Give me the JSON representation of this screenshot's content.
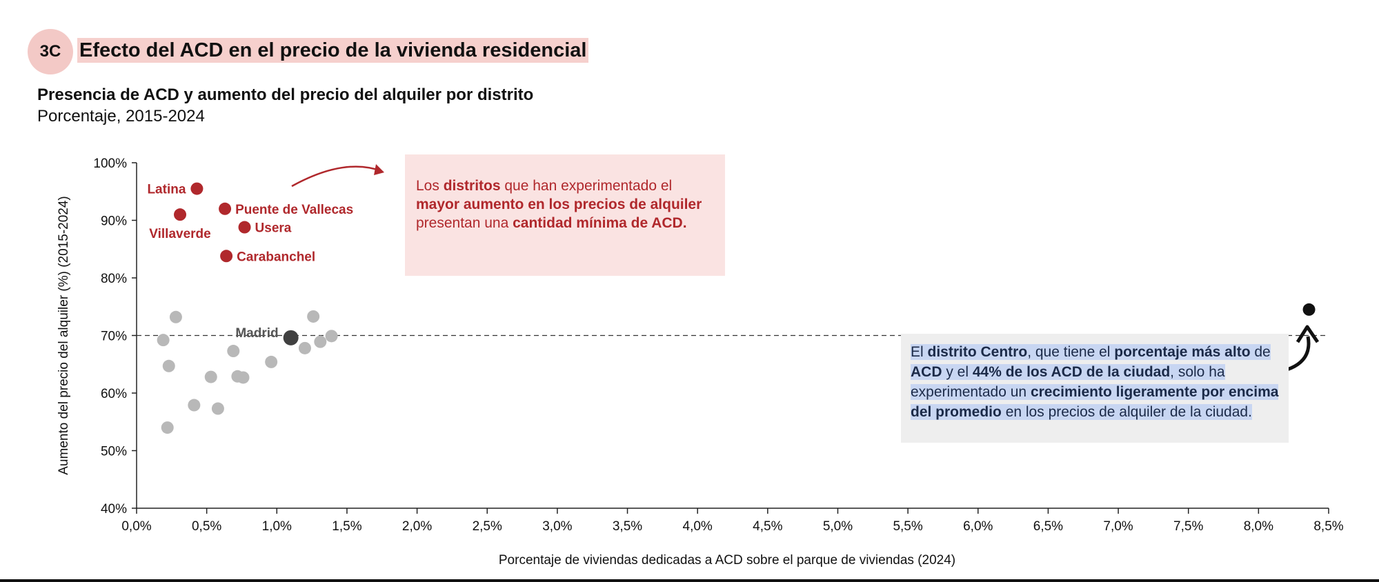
{
  "header": {
    "badge": "3C",
    "title": "Efecto del ACD en el precio de la vivienda residencial",
    "subtitle": "Presencia de ACD y aumento del precio del alquiler por distrito",
    "subtitle2": "Porcentaje, 2015-2024"
  },
  "annotations": {
    "red_box": [
      {
        "t": "Los ",
        "b": false
      },
      {
        "t": "distritos",
        "b": true
      },
      {
        "t": " que han experimentado el ",
        "b": false
      },
      {
        "t": "mayor aumento en los precios de alquiler",
        "b": true
      },
      {
        "t": " presentan una ",
        "b": false
      },
      {
        "t": "cantidad mínima de ACD.",
        "b": true
      }
    ],
    "gray_box": [
      {
        "t": "El ",
        "b": false
      },
      {
        "t": "distrito Centro",
        "b": true
      },
      {
        "t": ", que tiene el ",
        "b": false
      },
      {
        "t": "porcentaje más alto",
        "b": true
      },
      {
        "t": " de ",
        "b": false
      },
      {
        "t": "ACD",
        "b": true
      },
      {
        "t": " y el ",
        "b": false
      },
      {
        "t": "44% de los ACD de la ciudad",
        "b": true
      },
      {
        "t": ", solo ha experimentado un ",
        "b": false
      },
      {
        "t": "crecimiento ligeramente por encima del promedio",
        "b": true
      },
      {
        "t": " en los precios de alquiler de la ciudad.",
        "b": false
      }
    ]
  },
  "colors": {
    "highlight": "#b0282c",
    "other": "#b8b8b8",
    "average": "#404040",
    "centro": "#111111",
    "red_box": "#fae3e2",
    "gray_box": "#eeeeee"
  },
  "chart_data": {
    "type": "scatter",
    "xlabel": "Porcentaje de viviendas dedicadas a ACD sobre el parque de viviendas (2024)",
    "ylabel": "Aumento del precio del alquiler (%) (2015-2024)",
    "xlim": [
      0,
      8.5
    ],
    "ylim": [
      40,
      100
    ],
    "x_ticks": [
      0,
      0.5,
      1.0,
      1.5,
      2.0,
      2.5,
      3.0,
      3.5,
      4.0,
      4.5,
      5.0,
      5.5,
      6.0,
      6.5,
      7.0,
      7.5,
      8.0,
      8.5
    ],
    "x_tick_labels": [
      "0,0%",
      "0,5%",
      "1,0%",
      "1,5%",
      "2,0%",
      "2,5%",
      "3,0%",
      "3,5%",
      "4,0%",
      "4,5%",
      "5,0%",
      "5,5%",
      "6,0%",
      "6,5%",
      "7,0%",
      "7,5%",
      "8,0%",
      "8,5%"
    ],
    "y_ticks": [
      40,
      50,
      60,
      70,
      80,
      90,
      100
    ],
    "y_tick_labels": [
      "40%",
      "50%",
      "60%",
      "70%",
      "80%",
      "90%",
      "100%"
    ],
    "reference_line": {
      "y": 70,
      "style": "dashed"
    },
    "highlighted": [
      {
        "name": "Latina",
        "x": 0.43,
        "y": 95.5
      },
      {
        "name": "Villaverde",
        "x": 0.31,
        "y": 91.0
      },
      {
        "name": "Puente de Vallecas",
        "x": 0.63,
        "y": 92.0
      },
      {
        "name": "Usera",
        "x": 0.77,
        "y": 88.8
      },
      {
        "name": "Carabanchel",
        "x": 0.64,
        "y": 83.8
      }
    ],
    "average": {
      "name": "Madrid",
      "x": 1.1,
      "y": 69.6
    },
    "centro": {
      "x": 8.36,
      "y": 74.5
    },
    "others": [
      {
        "x": 0.28,
        "y": 73.2
      },
      {
        "x": 0.19,
        "y": 69.2
      },
      {
        "x": 0.23,
        "y": 64.7
      },
      {
        "x": 0.22,
        "y": 54.0
      },
      {
        "x": 0.41,
        "y": 57.9
      },
      {
        "x": 0.53,
        "y": 62.8
      },
      {
        "x": 0.58,
        "y": 57.3
      },
      {
        "x": 0.69,
        "y": 67.3
      },
      {
        "x": 0.72,
        "y": 62.9
      },
      {
        "x": 0.76,
        "y": 62.7
      },
      {
        "x": 0.96,
        "y": 65.4
      },
      {
        "x": 1.2,
        "y": 67.8
      },
      {
        "x": 1.26,
        "y": 73.3
      },
      {
        "x": 1.31,
        "y": 68.9
      },
      {
        "x": 1.39,
        "y": 69.9
      }
    ]
  }
}
